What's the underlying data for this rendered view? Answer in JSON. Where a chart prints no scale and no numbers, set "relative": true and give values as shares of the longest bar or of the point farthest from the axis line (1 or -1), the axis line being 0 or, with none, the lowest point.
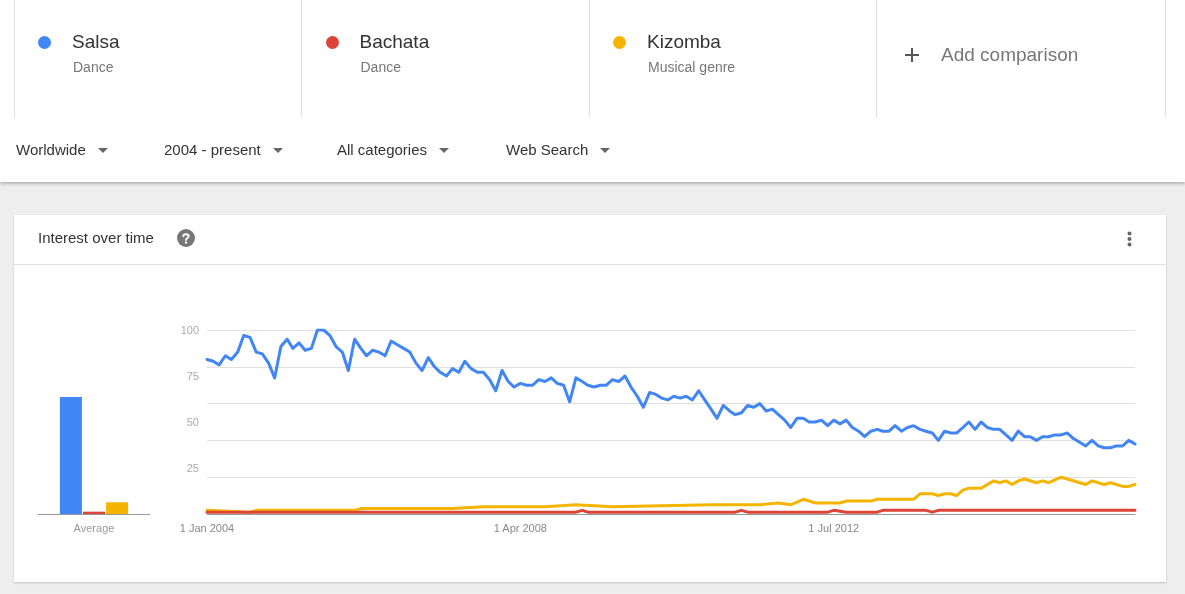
{
  "chart_data": [
    {
      "type": "line",
      "title": "Interest over time",
      "legend": "top",
      "marker": "none",
      "grid": "y",
      "xlim": [
        "2004-01",
        "2016-08"
      ],
      "xticks": [
        {
          "value": "2004-01-01",
          "label": "1 Jan 2004"
        },
        {
          "value": "2008-04-01",
          "label": "1 Apr 2008"
        },
        {
          "value": "2012-07-01",
          "label": "1 Jul 2012"
        }
      ],
      "ylim": [
        0,
        100
      ],
      "yticks": [
        {
          "value": 0,
          "label": null
        },
        25,
        50,
        75,
        100
      ],
      "annotations": [
        "Dance",
        "Dance",
        "Musical genre",
        "Add comparison",
        "Worldwide",
        "2004 - present",
        "All categories",
        "Web Search"
      ],
      "series": [
        {
          "name": "Salsa",
          "color": "#4285f4",
          "x": [
            "2004-01",
            "2004-02",
            "2004-03",
            "2004-04",
            "2004-05",
            "2004-06",
            "2004-07",
            "2004-08",
            "2004-09",
            "2004-10",
            "2004-11",
            "2004-12",
            "2005-01",
            "2005-02",
            "2005-03",
            "2005-04",
            "2005-05",
            "2005-06",
            "2005-07",
            "2005-08",
            "2005-09",
            "2005-10",
            "2005-11",
            "2005-12",
            "2006-01",
            "2006-02",
            "2006-03",
            "2006-04",
            "2006-05",
            "2006-06",
            "2006-07",
            "2006-08",
            "2006-09",
            "2006-10",
            "2006-11",
            "2006-12",
            "2007-01",
            "2007-02",
            "2007-03",
            "2007-04",
            "2007-05",
            "2007-06",
            "2007-07",
            "2007-08",
            "2007-09",
            "2007-10",
            "2007-11",
            "2007-12",
            "2008-01",
            "2008-02",
            "2008-03",
            "2008-04",
            "2008-05",
            "2008-06",
            "2008-07",
            "2008-08",
            "2008-09",
            "2008-10",
            "2008-11",
            "2008-12",
            "2009-01",
            "2009-02",
            "2009-03",
            "2009-04",
            "2009-05",
            "2009-06",
            "2009-07",
            "2009-08",
            "2009-09",
            "2009-10",
            "2009-11",
            "2009-12",
            "2010-01",
            "2010-02",
            "2010-03",
            "2010-04",
            "2010-05",
            "2010-06",
            "2010-07",
            "2010-08",
            "2010-09",
            "2010-10",
            "2010-11",
            "2010-12",
            "2011-01",
            "2011-02",
            "2011-03",
            "2011-04",
            "2011-05",
            "2011-06",
            "2011-07",
            "2011-08",
            "2011-09",
            "2011-10",
            "2011-11",
            "2011-12",
            "2012-01",
            "2012-02",
            "2012-03",
            "2012-04",
            "2012-05",
            "2012-06",
            "2012-07",
            "2012-08",
            "2012-09",
            "2012-10",
            "2012-11",
            "2012-12",
            "2013-01",
            "2013-02",
            "2013-03",
            "2013-04",
            "2013-05",
            "2013-06",
            "2013-07",
            "2013-08",
            "2013-09",
            "2013-10",
            "2013-11",
            "2013-12",
            "2014-01",
            "2014-02",
            "2014-03",
            "2014-04",
            "2014-05",
            "2014-06",
            "2014-07",
            "2014-08",
            "2014-09",
            "2014-10",
            "2014-11",
            "2014-12",
            "2015-01",
            "2015-02",
            "2015-03",
            "2015-04",
            "2015-05",
            "2015-06",
            "2015-07",
            "2015-08",
            "2015-09",
            "2015-10",
            "2015-11",
            "2015-12",
            "2016-01",
            "2016-02",
            "2016-03",
            "2016-04",
            "2016-05",
            "2016-06",
            "2016-07",
            "2016-08"
          ],
          "values": [
            84,
            83,
            81,
            86,
            84,
            88,
            97,
            96,
            88,
            87,
            82,
            74,
            91,
            95,
            90,
            93,
            89,
            90,
            100,
            100,
            97,
            91,
            88,
            78,
            95,
            90,
            86,
            89,
            88,
            86,
            94,
            92,
            90,
            88,
            82,
            78,
            85,
            80,
            77,
            75,
            79,
            77,
            83,
            79,
            77,
            77,
            73,
            67,
            78,
            72,
            69,
            71,
            70,
            70,
            73,
            72,
            74,
            71,
            70,
            61,
            74,
            72,
            70,
            69,
            70,
            70,
            73,
            72,
            75,
            69,
            64,
            58,
            66,
            65,
            63,
            62,
            64,
            63,
            64,
            62,
            67,
            62,
            57,
            52,
            59,
            56,
            54,
            55,
            59,
            58,
            60,
            56,
            57,
            54,
            51,
            47,
            52,
            52,
            50,
            50,
            51,
            48,
            51,
            49,
            51,
            47,
            45,
            42,
            45,
            46,
            45,
            45,
            48,
            45,
            47,
            48,
            46,
            45,
            44,
            40,
            45,
            44,
            44,
            47,
            50,
            46,
            50,
            47,
            46,
            46,
            43,
            40,
            45,
            42,
            42,
            40,
            42,
            42,
            43,
            43,
            44,
            41,
            39,
            37,
            40,
            37,
            36,
            36,
            37,
            37,
            40,
            38
          ]
        },
        {
          "name": "Bachata",
          "color": "#db4437",
          "x": [
            "2004-01",
            "2009-01",
            "2009-02",
            "2009-03",
            "2011-03",
            "2011-04",
            "2011-05",
            "2012-06",
            "2012-07",
            "2012-09",
            "2013-02",
            "2013-03",
            "2013-10",
            "2013-11",
            "2013-12",
            "2016-08"
          ],
          "values": [
            1,
            1,
            2,
            1,
            1,
            2,
            1,
            1,
            2,
            1,
            1,
            2,
            2,
            1,
            2,
            2
          ]
        },
        {
          "name": "Kizomba",
          "color": "#f4b400",
          "x": [
            "2004-01",
            "2004-08",
            "2004-09",
            "2006-01",
            "2006-02",
            "2007-05",
            "2007-10",
            "2008-08",
            "2009-01",
            "2009-07",
            "2010-11",
            "2011-07",
            "2011-10",
            "2011-12",
            "2012-02",
            "2012-04",
            "2012-08",
            "2012-09",
            "2013-01",
            "2013-02",
            "2013-08",
            "2013-09",
            "2013-11",
            "2013-12",
            "2014-01",
            "2014-02",
            "2014-03",
            "2014-04",
            "2014-05",
            "2014-07",
            "2014-09",
            "2014-10",
            "2014-11",
            "2014-12",
            "2015-01",
            "2015-02",
            "2015-04",
            "2015-05",
            "2015-06",
            "2015-08",
            "2015-09",
            "2015-12",
            "2016-01",
            "2016-03",
            "2016-04",
            "2016-06",
            "2016-07",
            "2016-08"
          ],
          "values": [
            2,
            1,
            2,
            2,
            3,
            3,
            4,
            4,
            5,
            4,
            5,
            5,
            6,
            5,
            8,
            6,
            6,
            7,
            7,
            8,
            8,
            11,
            11,
            10,
            11,
            11,
            10,
            13,
            14,
            14,
            18,
            17,
            18,
            16,
            18,
            19,
            17,
            18,
            17,
            20,
            19,
            16,
            18,
            16,
            17,
            15,
            15,
            16
          ]
        }
      ]
    },
    {
      "type": "bar",
      "relative": true,
      "categories": [
        "Average"
      ],
      "series": [
        {
          "color": "#4285f4",
          "values": [
            1
          ]
        },
        {
          "color": "#db4437",
          "values": [
            0.02
          ]
        },
        {
          "color": "#f4b400",
          "values": [
            0.1
          ]
        }
      ]
    }
  ]
}
